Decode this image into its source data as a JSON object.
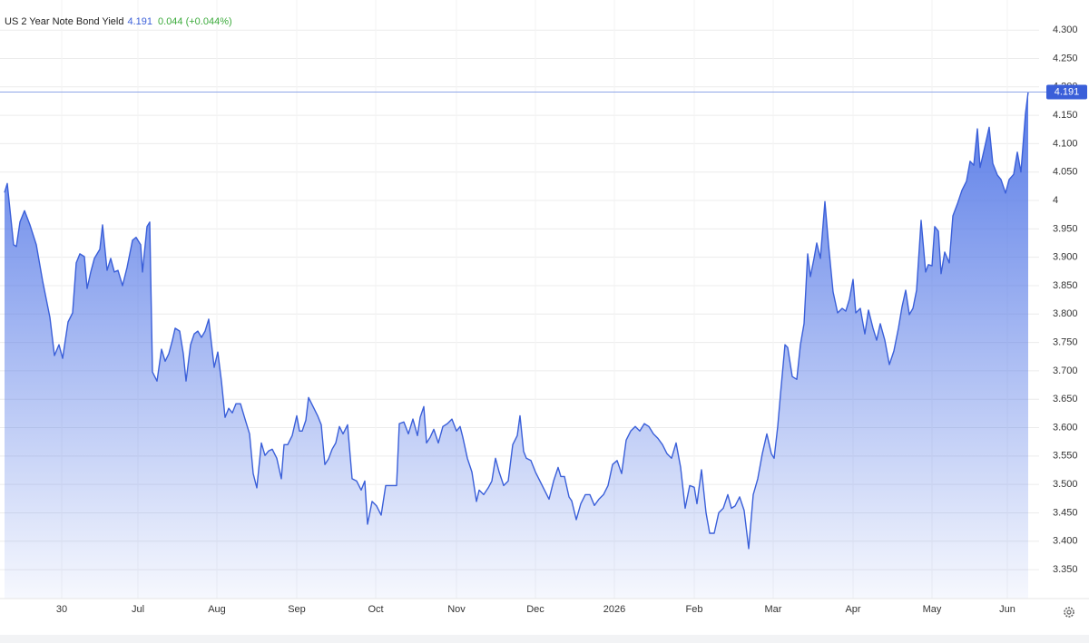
{
  "chart_data": {
    "type": "area",
    "title": "US 2 Year Note Bond Yield",
    "last": 4.191,
    "change": "0.044 (+0.044%)",
    "color": "#3a5fd9",
    "grid": true,
    "x": [
      0,
      0.75,
      2.5,
      3.25,
      4.25,
      5.5,
      7,
      8.75,
      10.5,
      12.5,
      13.75,
      15,
      16,
      17.5,
      18.75,
      19.75,
      20.75,
      22,
      22.75,
      23.75,
      24.75,
      26.25,
      27,
      28.25,
      29.25,
      30.25,
      31.25,
      32.5,
      33.75,
      35.25,
      36.25,
      37.5,
      38,
      39.25,
      40,
      40.75,
      42,
      43.25,
      44.25,
      45.25,
      46.25,
      47,
      48.25,
      49.25,
      50,
      51.25,
      52.25,
      53.25,
      54.25,
      55.25,
      56.25,
      57.75,
      58.75,
      59.75,
      60.75,
      61.75,
      62.75,
      63.75,
      65,
      66.25,
      67.5,
      68.5,
      69.5,
      70.75,
      71.75,
      72.75,
      73.75,
      75,
      76.25,
      77,
      78,
      79.25,
      80.5,
      81.25,
      82,
      83,
      83.75,
      85,
      86.25,
      87.25,
      88.25,
      89.25,
      90.25,
      91.25,
      92.25,
      93.25,
      94.5,
      95.75,
      97,
      98.25,
      99.25,
      100,
      101.25,
      102.5,
      103.75,
      105,
      106.25,
      108,
      108.75,
      110,
      111.25,
      112.5,
      113.75,
      114.5,
      115.5,
      116.25,
      117.25,
      118.25,
      119.5,
      120.75,
      122,
      123.25,
      124.5,
      125.5,
      126.25,
      127.5,
      128.75,
      130,
      130.75,
      132,
      133.25,
      134.25,
      135.25,
      136.25,
      137.5,
      138.75,
      140,
      141.25,
      142,
      143,
      143.75,
      145,
      146.25,
      147.5,
      148.75,
      150,
      151.25,
      152.5,
      153.25,
      154.25,
      155.5,
      156.25,
      157.5,
      158.75,
      160,
      161.25,
      162.5,
      163.75,
      165,
      166.25,
      167.5,
      168.75,
      170,
      171.25,
      172.5,
      173.75,
      175,
      176.25,
      177.5,
      178.75,
      180,
      181.25,
      182.5,
      183.75,
      185,
      186.25,
      187.5,
      188.75,
      190,
      190.75,
      192,
      193.25,
      194.25,
      195.5,
      196.75,
      198,
      199.25,
      200.25,
      201.25,
      202.5,
      203.75,
      205,
      206.25,
      207.5,
      208.75,
      210,
      211.25,
      212,
      213,
      213.75,
      215,
      215.75,
      217,
      218.25,
      219.25,
      220.25,
      221.25,
      222,
      223,
      223.75,
      224.75,
      226,
      227,
      228.25,
      229.5,
      230.75,
      231.75,
      232.75,
      233.75,
      234.5,
      235.75,
      237,
      238,
      239.25,
      240.25,
      241.25,
      242.5,
      243.75,
      245,
      246.25,
      247.25,
      248.25,
      249.25,
      250.25,
      251.25,
      252.5,
      253.75,
      254.5,
      255.5,
      256.25,
      257.25,
      258,
      259,
      260.25,
      261.25,
      262.5,
      263.75,
      265,
      266,
      267,
      268,
      268.75,
      270,
      271.25,
      272.25,
      273.5,
      274.5,
      275.75,
      276.75,
      278,
      279,
      280,
      281.25,
      282
    ],
    "values": [
      4.014,
      4.03,
      3.922,
      3.919,
      3.962,
      3.982,
      3.957,
      3.922,
      3.858,
      3.794,
      3.727,
      3.746,
      3.722,
      3.786,
      3.802,
      3.89,
      3.906,
      3.901,
      3.845,
      3.874,
      3.898,
      3.914,
      3.957,
      3.877,
      3.898,
      3.874,
      3.877,
      3.85,
      3.882,
      3.93,
      3.935,
      3.922,
      3.874,
      3.954,
      3.962,
      3.698,
      3.682,
      3.738,
      3.717,
      3.73,
      3.754,
      3.775,
      3.77,
      3.73,
      3.682,
      3.746,
      3.765,
      3.77,
      3.759,
      3.77,
      3.791,
      3.706,
      3.733,
      3.682,
      3.618,
      3.634,
      3.626,
      3.642,
      3.642,
      3.615,
      3.589,
      3.519,
      3.494,
      3.573,
      3.551,
      3.559,
      3.562,
      3.546,
      3.51,
      3.57,
      3.57,
      3.586,
      3.621,
      3.594,
      3.594,
      3.613,
      3.653,
      3.637,
      3.621,
      3.605,
      3.535,
      3.545,
      3.562,
      3.573,
      3.602,
      3.589,
      3.605,
      3.51,
      3.506,
      3.49,
      3.506,
      3.43,
      3.47,
      3.462,
      3.446,
      3.498,
      3.498,
      3.498,
      3.607,
      3.61,
      3.589,
      3.615,
      3.586,
      3.618,
      3.637,
      3.573,
      3.583,
      3.597,
      3.573,
      3.602,
      3.607,
      3.615,
      3.594,
      3.602,
      3.583,
      3.546,
      3.522,
      3.47,
      3.49,
      3.482,
      3.494,
      3.506,
      3.546,
      3.522,
      3.498,
      3.506,
      3.57,
      3.586,
      3.621,
      3.558,
      3.546,
      3.542,
      3.522,
      3.506,
      3.49,
      3.474,
      3.506,
      3.53,
      3.514,
      3.514,
      3.478,
      3.471,
      3.438,
      3.466,
      3.482,
      3.482,
      3.463,
      3.474,
      3.482,
      3.498,
      3.535,
      3.542,
      3.519,
      3.578,
      3.594,
      3.602,
      3.594,
      3.607,
      3.602,
      3.589,
      3.581,
      3.57,
      3.554,
      3.546,
      3.573,
      3.53,
      3.458,
      3.498,
      3.495,
      3.466,
      3.526,
      3.45,
      3.414,
      3.414,
      3.45,
      3.458,
      3.482,
      3.458,
      3.462,
      3.478,
      3.454,
      3.387,
      3.482,
      3.51,
      3.554,
      3.589,
      3.554,
      3.546,
      3.602,
      3.658,
      3.746,
      3.741,
      3.69,
      3.685,
      3.746,
      3.783,
      3.906,
      3.866,
      3.898,
      3.925,
      3.898,
      3.998,
      3.922,
      3.839,
      3.802,
      3.81,
      3.805,
      3.826,
      3.861,
      3.802,
      3.81,
      3.765,
      3.807,
      3.775,
      3.754,
      3.783,
      3.754,
      3.711,
      3.735,
      3.775,
      3.813,
      3.842,
      3.799,
      3.81,
      3.842,
      3.965,
      3.874,
      3.887,
      3.885,
      3.954,
      3.946,
      3.871,
      3.909,
      3.89,
      3.973,
      3.994,
      4.018,
      4.034,
      4.069,
      4.062,
      4.126,
      4.058,
      4.093,
      4.129,
      4.065,
      4.045,
      4.037,
      4.013,
      4.037,
      4.046,
      4.085,
      4.05,
      4.153,
      4.191
    ],
    "xlim": [
      -1.25,
      285
    ],
    "xticks": [
      {
        "value": 15.75,
        "label": "30"
      },
      {
        "value": 36.75,
        "label": "Jul"
      },
      {
        "value": 58.5,
        "label": "Aug"
      },
      {
        "value": 80.5,
        "label": "Sep"
      },
      {
        "value": 102.25,
        "label": "Oct"
      },
      {
        "value": 124.5,
        "label": "Nov"
      },
      {
        "value": 146.25,
        "label": "Dec"
      },
      {
        "value": 168,
        "label": "2026"
      },
      {
        "value": 190,
        "label": "Feb"
      },
      {
        "value": 211.75,
        "label": "Mar"
      },
      {
        "value": 233.75,
        "label": "Apr"
      },
      {
        "value": 255.5,
        "label": "May"
      },
      {
        "value": 276.25,
        "label": "Jun"
      }
    ],
    "ylim": [
      3.299,
      4.353
    ],
    "yticks": [
      {
        "value": 3.35,
        "label": "3.350"
      },
      {
        "value": 3.4,
        "label": "3.400"
      },
      {
        "value": 3.45,
        "label": "3.450"
      },
      {
        "value": 3.5,
        "label": "3.500"
      },
      {
        "value": 3.55,
        "label": "3.550"
      },
      {
        "value": 3.6,
        "label": "3.600"
      },
      {
        "value": 3.65,
        "label": "3.650"
      },
      {
        "value": 3.7,
        "label": "3.700"
      },
      {
        "value": 3.75,
        "label": "3.750"
      },
      {
        "value": 3.8,
        "label": "3.800"
      },
      {
        "value": 3.85,
        "label": "3.850"
      },
      {
        "value": 3.9,
        "label": "3.900"
      },
      {
        "value": 3.95,
        "label": "3.950"
      },
      4,
      {
        "value": 4.05,
        "label": "4.050"
      },
      {
        "value": 4.1,
        "label": "4.100"
      },
      {
        "value": 4.15,
        "label": "4.150"
      },
      {
        "value": 4.2,
        "label": "4.200"
      },
      {
        "value": 4.25,
        "label": "4.250"
      },
      {
        "value": 4.3,
        "label": "4.300"
      }
    ]
  }
}
